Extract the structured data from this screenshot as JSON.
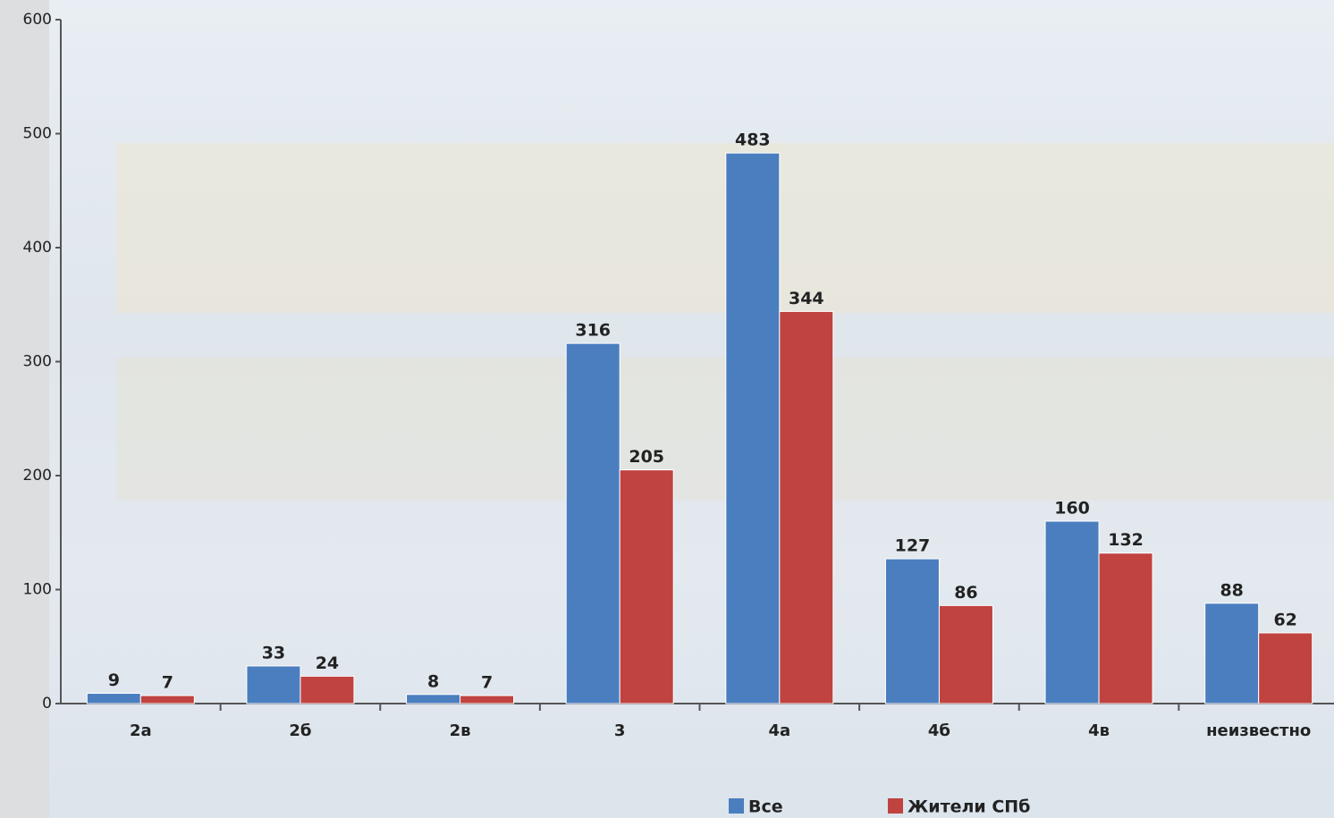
{
  "chart_data": {
    "type": "bar",
    "categories": [
      "2а",
      "2б",
      "2в",
      "3",
      "4а",
      "4б",
      "4в",
      "неизвестно"
    ],
    "series": [
      {
        "name": "Все",
        "color": "#4a7ebf",
        "values": [
          9,
          33,
          8,
          316,
          483,
          127,
          160,
          88
        ]
      },
      {
        "name": "Жители СПб",
        "color": "#c0433f",
        "values": [
          7,
          24,
          7,
          205,
          344,
          86,
          132,
          62
        ]
      }
    ],
    "ylim": [
      0,
      600
    ],
    "yticks": [
      0,
      100,
      200,
      300,
      400,
      500,
      600
    ],
    "legend": "bottom"
  }
}
